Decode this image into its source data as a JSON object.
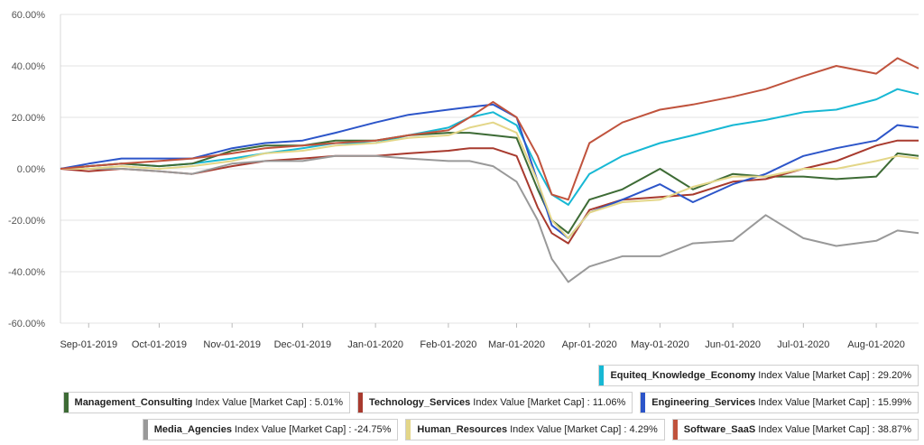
{
  "chart_data": {
    "type": "line",
    "ylim": [
      -60,
      60
    ],
    "yticks": [
      "60.00%",
      "40.00%",
      "20.00%",
      "0.00%",
      "-20.00%",
      "-40.00%",
      "-60.00%"
    ],
    "ytick_values": [
      60,
      40,
      20,
      0,
      -20,
      -40,
      -60
    ],
    "xticks": [
      "Sep-01-2019",
      "Oct-01-2019",
      "Nov-01-2019",
      "Dec-01-2019",
      "Jan-01-2020",
      "Feb-01-2020",
      "Mar-01-2020",
      "Apr-01-2020",
      "May-01-2020",
      "Jun-01-2020",
      "Jul-01-2020",
      "Aug-01-2020"
    ],
    "xdomain": [
      "2019-08-20",
      "2020-08-19"
    ],
    "grid": "horizontal",
    "series": [
      {
        "name": "Equiteq_Knowledge_Economy",
        "color": "#17b8d4",
        "x": [
          "2019-08-20",
          "2019-09-01",
          "2019-09-15",
          "2019-10-01",
          "2019-10-15",
          "2019-11-01",
          "2019-11-15",
          "2019-12-01",
          "2019-12-15",
          "2020-01-01",
          "2020-01-15",
          "2020-02-01",
          "2020-02-10",
          "2020-02-20",
          "2020-03-01",
          "2020-03-10",
          "2020-03-16",
          "2020-03-23",
          "2020-04-01",
          "2020-04-15",
          "2020-05-01",
          "2020-05-15",
          "2020-06-01",
          "2020-06-15",
          "2020-07-01",
          "2020-07-15",
          "2020-08-01",
          "2020-08-10",
          "2020-08-19"
        ],
        "y": [
          0,
          1,
          2,
          1,
          2,
          4,
          6,
          8,
          10,
          10,
          13,
          16,
          20,
          22,
          17,
          0,
          -10,
          -14,
          -2,
          5,
          10,
          13,
          17,
          19,
          22,
          23,
          27,
          31,
          29
        ]
      },
      {
        "name": "Management_Consulting",
        "color": "#3d6b35",
        "x": [
          "2019-08-20",
          "2019-09-01",
          "2019-09-15",
          "2019-10-01",
          "2019-10-15",
          "2019-11-01",
          "2019-11-15",
          "2019-12-01",
          "2019-12-15",
          "2020-01-01",
          "2020-01-15",
          "2020-02-01",
          "2020-02-10",
          "2020-02-20",
          "2020-03-01",
          "2020-03-10",
          "2020-03-16",
          "2020-03-23",
          "2020-04-01",
          "2020-04-15",
          "2020-05-01",
          "2020-05-15",
          "2020-06-01",
          "2020-06-15",
          "2020-07-01",
          "2020-07-15",
          "2020-08-01",
          "2020-08-10",
          "2020-08-19"
        ],
        "y": [
          0,
          1,
          2,
          1,
          2,
          7,
          9,
          9,
          11,
          11,
          13,
          14,
          14,
          13,
          12,
          -8,
          -20,
          -25,
          -12,
          -8,
          0,
          -8,
          -2,
          -3,
          -3,
          -4,
          -3,
          6,
          5
        ]
      },
      {
        "name": "Technology_Services",
        "color": "#a83a2e",
        "x": [
          "2019-08-20",
          "2019-09-01",
          "2019-09-15",
          "2019-10-01",
          "2019-10-15",
          "2019-11-01",
          "2019-11-15",
          "2019-12-01",
          "2019-12-15",
          "2020-01-01",
          "2020-01-15",
          "2020-02-01",
          "2020-02-10",
          "2020-02-20",
          "2020-03-01",
          "2020-03-10",
          "2020-03-16",
          "2020-03-23",
          "2020-04-01",
          "2020-04-15",
          "2020-05-01",
          "2020-05-15",
          "2020-06-01",
          "2020-06-15",
          "2020-07-01",
          "2020-07-15",
          "2020-08-01",
          "2020-08-10",
          "2020-08-19"
        ],
        "y": [
          0,
          -1,
          0,
          -1,
          -2,
          1,
          3,
          4,
          5,
          5,
          6,
          7,
          8,
          8,
          5,
          -15,
          -25,
          -29,
          -16,
          -12,
          -11,
          -10,
          -5,
          -4,
          0,
          3,
          9,
          11,
          11
        ]
      },
      {
        "name": "Engineering_Services",
        "color": "#2c55c9",
        "x": [
          "2019-08-20",
          "2019-09-01",
          "2019-09-15",
          "2019-10-01",
          "2019-10-15",
          "2019-11-01",
          "2019-11-15",
          "2019-12-01",
          "2019-12-15",
          "2020-01-01",
          "2020-01-15",
          "2020-02-01",
          "2020-02-10",
          "2020-02-20",
          "2020-03-01",
          "2020-03-10",
          "2020-03-16",
          "2020-03-23",
          "2020-04-01",
          "2020-04-15",
          "2020-05-01",
          "2020-05-15",
          "2020-06-01",
          "2020-06-15",
          "2020-07-01",
          "2020-07-15",
          "2020-08-01",
          "2020-08-10",
          "2020-08-19"
        ],
        "y": [
          0,
          2,
          4,
          4,
          4,
          8,
          10,
          11,
          14,
          18,
          21,
          23,
          24,
          25,
          20,
          -5,
          -22,
          -27,
          -17,
          -12,
          -6,
          -13,
          -6,
          -2,
          5,
          8,
          11,
          17,
          16
        ]
      },
      {
        "name": "Media_Agencies",
        "color": "#999999",
        "x": [
          "2019-08-20",
          "2019-09-01",
          "2019-09-15",
          "2019-10-01",
          "2019-10-15",
          "2019-11-01",
          "2019-11-15",
          "2019-12-01",
          "2019-12-15",
          "2020-01-01",
          "2020-01-15",
          "2020-02-01",
          "2020-02-10",
          "2020-02-20",
          "2020-03-01",
          "2020-03-10",
          "2020-03-16",
          "2020-03-23",
          "2020-04-01",
          "2020-04-15",
          "2020-05-01",
          "2020-05-15",
          "2020-06-01",
          "2020-06-15",
          "2020-07-01",
          "2020-07-15",
          "2020-08-01",
          "2020-08-10",
          "2020-08-19"
        ],
        "y": [
          0,
          0,
          0,
          -1,
          -2,
          2,
          3,
          3,
          5,
          5,
          4,
          3,
          3,
          1,
          -5,
          -20,
          -35,
          -44,
          -38,
          -34,
          -34,
          -29,
          -28,
          -18,
          -27,
          -30,
          -28,
          -24,
          -25
        ]
      },
      {
        "name": "Human_Resources",
        "color": "#e3d688",
        "x": [
          "2019-08-20",
          "2019-09-01",
          "2019-09-15",
          "2019-10-01",
          "2019-10-15",
          "2019-11-01",
          "2019-11-15",
          "2019-12-01",
          "2019-12-15",
          "2020-01-01",
          "2020-01-15",
          "2020-02-01",
          "2020-02-10",
          "2020-02-20",
          "2020-03-01",
          "2020-03-10",
          "2020-03-16",
          "2020-03-23",
          "2020-04-01",
          "2020-04-15",
          "2020-05-01",
          "2020-05-15",
          "2020-06-01",
          "2020-06-15",
          "2020-07-01",
          "2020-07-15",
          "2020-08-01",
          "2020-08-10",
          "2020-08-19"
        ],
        "y": [
          0,
          0,
          1,
          0,
          1,
          3,
          6,
          7,
          9,
          10,
          12,
          13,
          16,
          18,
          14,
          -5,
          -20,
          -27,
          -17,
          -13,
          -12,
          -7,
          -3,
          -3,
          0,
          0,
          3,
          5,
          4
        ]
      },
      {
        "name": "Software_SaaS",
        "color": "#c0533d",
        "x": [
          "2019-08-20",
          "2019-09-01",
          "2019-09-15",
          "2019-10-01",
          "2019-10-15",
          "2019-11-01",
          "2019-11-15",
          "2019-12-01",
          "2019-12-15",
          "2020-01-01",
          "2020-01-15",
          "2020-02-01",
          "2020-02-10",
          "2020-02-20",
          "2020-03-01",
          "2020-03-10",
          "2020-03-16",
          "2020-03-23",
          "2020-04-01",
          "2020-04-15",
          "2020-05-01",
          "2020-05-15",
          "2020-06-01",
          "2020-06-15",
          "2020-07-01",
          "2020-07-15",
          "2020-08-01",
          "2020-08-10",
          "2020-08-19"
        ],
        "y": [
          0,
          1,
          2,
          3,
          4,
          6,
          8,
          9,
          10,
          11,
          13,
          15,
          20,
          26,
          20,
          5,
          -10,
          -12,
          10,
          18,
          23,
          25,
          28,
          31,
          36,
          40,
          37,
          43,
          39
        ]
      }
    ]
  },
  "legend": {
    "rows": [
      [
        {
          "name": "Equiteq_Knowledge_Economy",
          "rest": "Index Value [Market Cap] : 29.20%",
          "color": "#17b8d4"
        }
      ],
      [
        {
          "name": "Management_Consulting",
          "rest": "Index Value [Market Cap] : 5.01%",
          "color": "#3d6b35"
        },
        {
          "name": "Technology_Services",
          "rest": "Index Value [Market Cap] : 11.06%",
          "color": "#a83a2e"
        },
        {
          "name": "Engineering_Services",
          "rest": "Index Value [Market Cap] : 15.99%",
          "color": "#2c55c9"
        }
      ],
      [
        {
          "name": "Media_Agencies",
          "rest": "Index Value [Market Cap] : -24.75%",
          "color": "#999999"
        },
        {
          "name": "Human_Resources",
          "rest": "Index Value [Market Cap] : 4.29%",
          "color": "#e3d688"
        },
        {
          "name": "Software_SaaS",
          "rest": "Index Value [Market Cap] : 38.87%",
          "color": "#c0533d"
        }
      ]
    ]
  }
}
